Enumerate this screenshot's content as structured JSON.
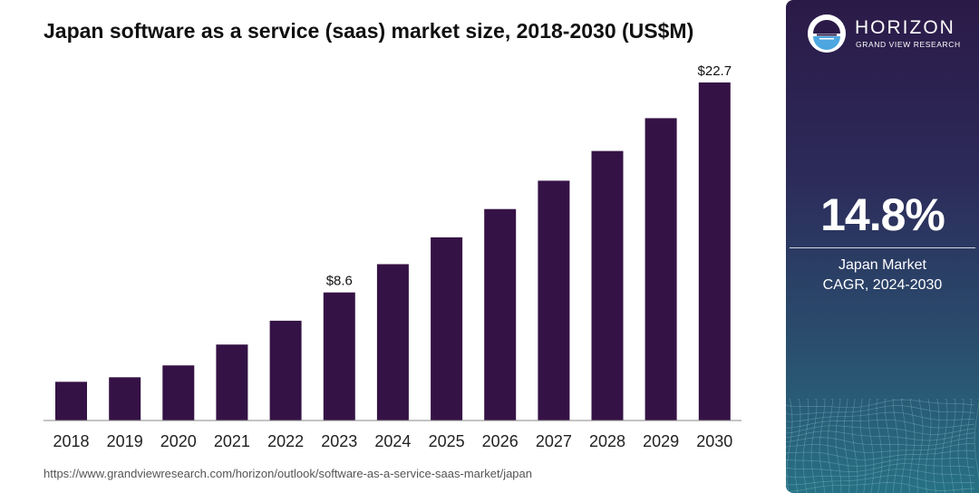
{
  "chart_data": {
    "type": "bar",
    "title": "Japan software as a service (saas) market size, 2018-2030 (US$M)",
    "categories": [
      "2018",
      "2019",
      "2020",
      "2021",
      "2022",
      "2023",
      "2024",
      "2025",
      "2026",
      "2027",
      "2028",
      "2029",
      "2030"
    ],
    "values": [
      2.6,
      2.9,
      3.7,
      5.1,
      6.7,
      8.6,
      10.5,
      12.3,
      14.2,
      16.1,
      18.1,
      20.3,
      22.7
    ],
    "data_labels": [
      {
        "category": "2023",
        "text": "$8.6"
      },
      {
        "category": "2030",
        "text": "$22.7"
      }
    ],
    "ylim": [
      0,
      22.7
    ],
    "grid": false,
    "colors": {
      "bar": "#351245",
      "axis": "#888888"
    }
  },
  "source_url": "https://www.grandviewresearch.com/horizon/outlook/software-as-a-service-saas-market/japan",
  "sidebar": {
    "brand": "HORIZON",
    "brand_sub": "GRAND VIEW RESEARCH",
    "cagr_value": "14.8%",
    "cagr_label_line1": "Japan Market",
    "cagr_label_line2": "CAGR, 2024-2030",
    "colors": {
      "logo_ring": "#4da6e0",
      "logo_dark": "#2b1a48"
    }
  }
}
